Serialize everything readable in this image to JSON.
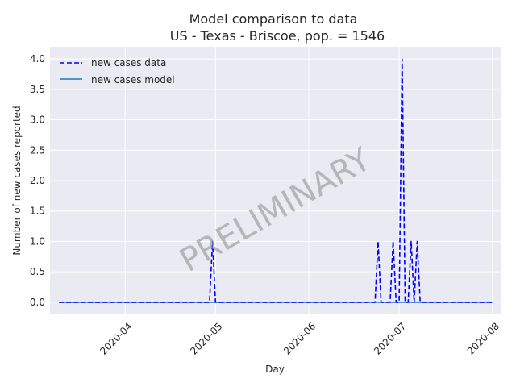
{
  "chart_data": {
    "type": "line",
    "title": "Model comparison to data",
    "subtitle": "US - Texas - Briscoe, pop. = 1546",
    "xlabel": "Day",
    "ylabel": "Number of new cases reported",
    "x_axis_type": "date",
    "xlim": [
      "2020-03-07",
      "2020-08-04"
    ],
    "ylim": [
      -0.2,
      4.2
    ],
    "x_ticks": [
      "2020-04-01",
      "2020-05-01",
      "2020-06-01",
      "2020-07-01",
      "2020-08-01"
    ],
    "x_tick_labels": [
      "2020-04",
      "2020-05",
      "2020-06",
      "2020-07",
      "2020-08"
    ],
    "y_ticks": [
      0.0,
      0.5,
      1.0,
      1.5,
      2.0,
      2.5,
      3.0,
      3.5,
      4.0
    ],
    "y_tick_labels": [
      "0.0",
      "0.5",
      "1.0",
      "1.5",
      "2.0",
      "2.5",
      "3.0",
      "3.5",
      "4.0"
    ],
    "grid": true,
    "legend_position": "top-left",
    "watermark": "PRELIMINARY",
    "series": [
      {
        "name": "new cases data",
        "style": "dashed",
        "color": "#0000ff",
        "points": [
          [
            "2020-03-10",
            0
          ],
          [
            "2020-04-29",
            0
          ],
          [
            "2020-04-30",
            1
          ],
          [
            "2020-05-01",
            0
          ],
          [
            "2020-06-23",
            0
          ],
          [
            "2020-06-24",
            1
          ],
          [
            "2020-06-25",
            0
          ],
          [
            "2020-06-28",
            0
          ],
          [
            "2020-06-29",
            1
          ],
          [
            "2020-06-30",
            0
          ],
          [
            "2020-07-01",
            0
          ],
          [
            "2020-07-02",
            4
          ],
          [
            "2020-07-03",
            0
          ],
          [
            "2020-07-04",
            0
          ],
          [
            "2020-07-05",
            1
          ],
          [
            "2020-07-06",
            0
          ],
          [
            "2020-07-07",
            1
          ],
          [
            "2020-07-08",
            0
          ],
          [
            "2020-08-01",
            0
          ]
        ]
      },
      {
        "name": "new cases model",
        "style": "solid",
        "color": "#1f77b4",
        "points": [
          [
            "2020-03-10",
            0
          ],
          [
            "2020-08-01",
            0
          ]
        ]
      }
    ]
  }
}
